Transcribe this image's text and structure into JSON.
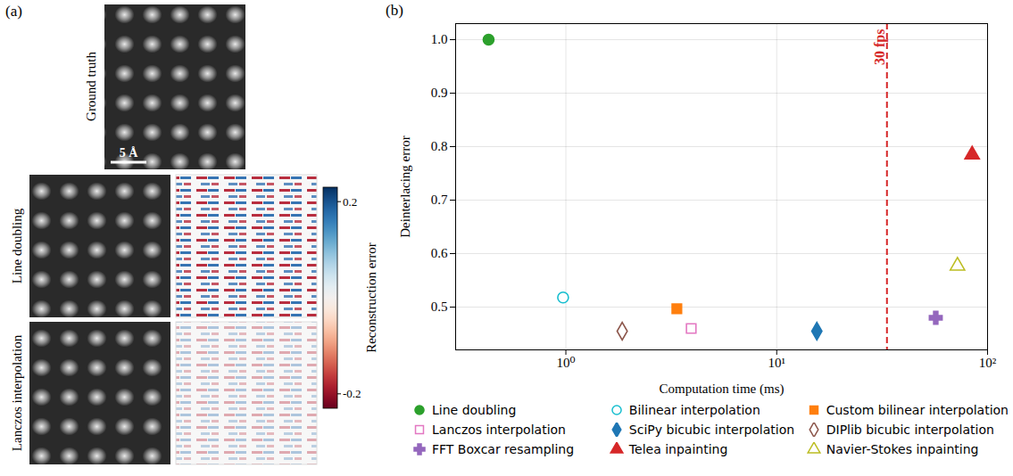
{
  "chart_data": [
    {
      "type": "image",
      "panel": "(a)",
      "images": [
        {
          "title": "Ground truth"
        },
        {
          "title": "Line doubling"
        },
        {
          "title": "Lanczos interpolation"
        }
      ],
      "scale_bar": "5 Å",
      "colorbar": {
        "label": "Reconstruction error",
        "range": [
          -0.23,
          0.23
        ],
        "ticks": [
          -0.2,
          0.2
        ]
      }
    },
    {
      "type": "scatter",
      "panel": "(b)",
      "xlabel": "Computation time (ms)",
      "ylabel": "Deinterlacing error",
      "log": "x",
      "grid": true,
      "legend": "bottom",
      "xlim": [
        0.3,
        100
      ],
      "xticks": [
        {
          "value": 1,
          "label": "10⁰"
        },
        {
          "value": 10,
          "label": "10¹"
        },
        {
          "value": 100,
          "label": "10²"
        }
      ],
      "ylim": [
        0.42,
        1.03
      ],
      "yticks": [
        0.5,
        0.6,
        0.7,
        0.8,
        0.9,
        {
          "value": 1.0,
          "label": "1.0"
        }
      ],
      "reference_lines": [
        {
          "x": 33.33,
          "label": "30 fps",
          "color": "#d62728",
          "line_style": "dashed"
        }
      ],
      "series": [
        {
          "name": "Line doubling",
          "color": "#2ca02c",
          "marker": "circle",
          "x": [
            0.43
          ],
          "values": [
            1.0
          ]
        },
        {
          "name": "Bilinear interpolation",
          "color": "#17becf",
          "marker": "circle-open",
          "x": [
            0.97
          ],
          "values": [
            0.518
          ]
        },
        {
          "name": "Custom bilinear interpolation",
          "color": "#ff7f0e",
          "marker": "square",
          "x": [
            3.36
          ],
          "values": [
            0.497
          ]
        },
        {
          "name": "Lanczos interpolation",
          "color": "#e377c2",
          "marker": "square-open",
          "x": [
            3.93
          ],
          "values": [
            0.46
          ]
        },
        {
          "name": "SciPy bicubic interpolation",
          "color": "#1f77b4",
          "marker": "diamond",
          "x": [
            15.5
          ],
          "values": [
            0.455
          ]
        },
        {
          "name": "DIPlib bicubic interpolation",
          "color": "#8c564b",
          "marker": "diamond-open",
          "x": [
            1.85
          ],
          "values": [
            0.455
          ]
        },
        {
          "name": "FFT Boxcar resampling",
          "color": "#9467bd",
          "marker": "cross",
          "x": [
            56.8
          ],
          "values": [
            0.48
          ]
        },
        {
          "name": "Telea inpainting",
          "color": "#d62728",
          "marker": "triangle",
          "x": [
            84.5
          ],
          "values": [
            0.785
          ]
        },
        {
          "name": "Navier-Stokes inpainting",
          "color": "#bcbd22",
          "marker": "triangle-open",
          "x": [
            72
          ],
          "values": [
            0.577
          ]
        }
      ]
    }
  ]
}
